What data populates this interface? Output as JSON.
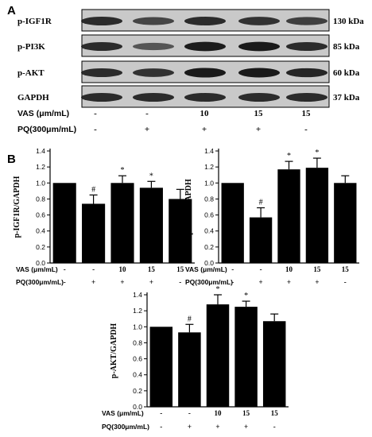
{
  "panel_a": {
    "label": "A",
    "rows": [
      {
        "protein": "p-IGF1R",
        "kda": "130 kDa",
        "intensity": [
          1.0,
          0.74,
          1.0,
          0.94,
          0.8
        ]
      },
      {
        "protein": "p-PI3K",
        "kda": "85 kDa",
        "intensity": [
          1.0,
          0.57,
          1.17,
          1.19,
          1.0
        ]
      },
      {
        "protein": "p-AKT",
        "kda": "60 kDa",
        "intensity": [
          1.0,
          0.93,
          1.28,
          1.25,
          1.07
        ]
      },
      {
        "protein": "GAPDH",
        "kda": "37 kDa",
        "intensity": [
          1.0,
          1.0,
          1.0,
          1.0,
          1.0
        ]
      }
    ],
    "vas_label": "VAS (μm/mL)",
    "vas_values": [
      "-",
      "-",
      "10",
      "15",
      "15"
    ],
    "pq_label": "PQ(300μm/mL)",
    "pq_values": [
      "-",
      "+",
      "+",
      "+",
      "-"
    ]
  },
  "panel_b": {
    "label": "B",
    "vas_label": "VAS (μm/mL)",
    "vas_values": [
      "-",
      "-",
      "10",
      "15",
      "15"
    ],
    "pq_label": "PQ(300μm/mL)",
    "pq_values": [
      "-",
      "+",
      "+",
      "+",
      "-"
    ]
  },
  "chart_data": [
    {
      "type": "bar",
      "ylabel": "p-IGF1R/GAPDH",
      "ylim": [
        0.0,
        1.4
      ],
      "yticks": [
        "0.0",
        "0.2",
        "0.4",
        "0.6",
        "0.8",
        "1.0",
        "1.2",
        "1.4"
      ],
      "values": [
        1.0,
        0.74,
        1.0,
        0.94,
        0.8
      ],
      "errors": [
        0.0,
        0.11,
        0.09,
        0.08,
        0.12
      ],
      "markers": [
        "",
        "#",
        "*",
        "*",
        ""
      ]
    },
    {
      "type": "bar",
      "ylabel": "p-PI3K/GAPDH",
      "ylim": [
        0.0,
        1.4
      ],
      "yticks": [
        "0.0",
        "0.2",
        "0.4",
        "0.6",
        "0.8",
        "1.0",
        "1.2",
        "1.4"
      ],
      "values": [
        1.0,
        0.57,
        1.17,
        1.19,
        1.0
      ],
      "errors": [
        0.0,
        0.12,
        0.1,
        0.12,
        0.09
      ],
      "markers": [
        "",
        "#",
        "*",
        "*",
        ""
      ]
    },
    {
      "type": "bar",
      "ylabel": "p-AKT/GAPDH",
      "ylim": [
        0.0,
        1.4
      ],
      "yticks": [
        "0.0",
        "0.2",
        "0.4",
        "0.6",
        "0.8",
        "1.0",
        "1.2",
        "1.4"
      ],
      "values": [
        1.0,
        0.93,
        1.28,
        1.25,
        1.07
      ],
      "errors": [
        0.0,
        0.1,
        0.12,
        0.07,
        0.09
      ],
      "markers": [
        "",
        "#",
        "*",
        "*",
        ""
      ]
    }
  ]
}
